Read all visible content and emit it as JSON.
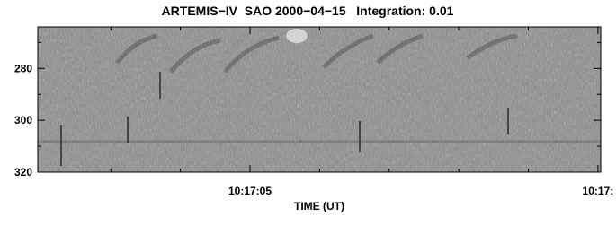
{
  "chart_data": {
    "type": "spectrogram",
    "title": "ARTEMIS−IV  SAO 2000−04−15   Integration: 0.01",
    "x_label": "TIME (UT)",
    "colormap": "gray",
    "xlim": [
      1.95,
      10.04
    ],
    "xticks": [
      {
        "value": 5,
        "label": "10:17:05"
      },
      {
        "value": 10,
        "label": "10:17:"
      }
    ],
    "xminorticks": [
      3,
      4,
      6,
      7,
      8,
      9
    ],
    "ylim": [
      320,
      264
    ],
    "yticks": [
      280,
      300,
      320
    ],
    "yminorticks": [
      270,
      290,
      310
    ]
  }
}
